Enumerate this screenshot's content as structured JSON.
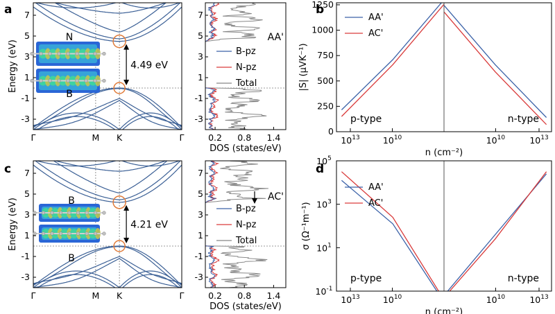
{
  "panel_labels": [
    "a",
    "b",
    "c",
    "d"
  ],
  "colors": {
    "band": "#3a5f95",
    "bpz": "#3b62a8",
    "npz": "#d93a3a",
    "total": "#888888",
    "aa": "#3b62a8",
    "ac": "#d93a3a",
    "marker": "#e07b39",
    "grid": "#777777"
  },
  "chart_data": [
    {
      "id": "a",
      "type": "line",
      "title": "",
      "xlabel": "",
      "ylabel": "Energy (eV)",
      "kpoint_labels": [
        "Γ",
        "M",
        "K",
        "Γ"
      ],
      "ylim": [
        -4,
        8.2
      ],
      "yticks": [
        -3,
        -1,
        1,
        3,
        5,
        7
      ],
      "fermi_level": 0,
      "gap": {
        "value": 4.49,
        "label": "4.49 eV",
        "vbm": 0,
        "cbm": 4.49,
        "k_point": "K"
      },
      "atom_labels": {
        "top": "N",
        "bottom": "B"
      },
      "bands_sampled": {
        "x": [
          0,
          0.55,
          0.73,
          1
        ],
        "conduction": [
          [
            7.6,
            5.6,
            4.49,
            7.6
          ],
          [
            8.2,
            6.6,
            5.4,
            8.1
          ]
        ],
        "valence": [
          [
            -3.9,
            -1.2,
            0,
            -3.9
          ],
          [
            -4.0,
            -2.6,
            -1.3,
            -4.0
          ]
        ]
      }
    },
    {
      "id": "a-dos",
      "type": "line",
      "xlabel": "DOS (states/eV)",
      "ylabel": "",
      "xlim": [
        0,
        1.65
      ],
      "ylim": [
        -4,
        8.2
      ],
      "xtick_labels": [
        "0.2",
        "0.8",
        "1.4"
      ],
      "yticks": [
        -3,
        -1,
        1,
        3,
        5,
        7
      ],
      "stacking_label": "AA'",
      "series": [
        {
          "name": "B-pz"
        },
        {
          "name": "N-pz"
        },
        {
          "name": "Total"
        }
      ]
    },
    {
      "id": "b",
      "type": "line",
      "title": "",
      "xlabel": "n (cm⁻²)",
      "ylabel": "|S| (μVK⁻¹)",
      "ylim": [
        0,
        1270
      ],
      "yticks": [
        0,
        250,
        500,
        750,
        1000,
        1250
      ],
      "xtick_labels": [
        "10",
        "10",
        "10",
        "10"
      ],
      "xtick_exponents": [
        "13",
        "10",
        "10",
        "13"
      ],
      "region_labels": [
        "p-type",
        "n-type"
      ],
      "x": [
        -13,
        -10,
        -7,
        -7,
        -10,
        -13
      ],
      "series": [
        {
          "name": "AA'",
          "values": [
            215,
            710,
            1300,
            1245,
            660,
            140
          ]
        },
        {
          "name": "AC'",
          "values": [
            150,
            660,
            1255,
            1180,
            590,
            70
          ]
        }
      ]
    },
    {
      "id": "c",
      "type": "line",
      "title": "",
      "xlabel": "",
      "ylabel": "Energy (eV)",
      "kpoint_labels": [
        "Γ",
        "M",
        "K",
        "Γ"
      ],
      "ylim": [
        -4,
        8.2
      ],
      "yticks": [
        -3,
        -1,
        1,
        3,
        5,
        7
      ],
      "fermi_level": 0,
      "gap": {
        "value": 4.21,
        "label": "4.21 eV",
        "vbm": 0,
        "cbm": 4.21,
        "k_point": "K"
      },
      "atom_labels": {
        "top": "B",
        "bottom": "B"
      },
      "bands_sampled": {
        "x": [
          0,
          0.55,
          0.73,
          1
        ],
        "conduction": [
          [
            7.6,
            5.0,
            4.21,
            7.6
          ],
          [
            8.2,
            5.6,
            4.9,
            8.2
          ]
        ],
        "valence": [
          [
            -3.9,
            -1.2,
            0,
            -3.9
          ],
          [
            -4.0,
            -2.6,
            -1.3,
            -4.0
          ]
        ]
      }
    },
    {
      "id": "c-dos",
      "type": "line",
      "xlabel": "DOS (states/eV)",
      "ylabel": "",
      "xlim": [
        0,
        1.65
      ],
      "ylim": [
        -4,
        8.2
      ],
      "xtick_labels": [
        "0.2",
        "0.8",
        "1.4"
      ],
      "yticks": [
        -3,
        -1,
        1,
        3,
        5,
        7
      ],
      "stacking_label": "AC'",
      "series": [
        {
          "name": "B-pz"
        },
        {
          "name": "N-pz"
        },
        {
          "name": "Total"
        }
      ]
    },
    {
      "id": "d",
      "type": "line",
      "title": "",
      "xlabel": "n (cm⁻²)",
      "ylabel": "σ (Ω⁻¹m⁻¹)",
      "yscale": "log",
      "ylim": [
        -1,
        5
      ],
      "ytick_labels": [
        "10",
        "10",
        "10",
        "10"
      ],
      "ytick_exponents": [
        "-1",
        "1",
        "3",
        "5"
      ],
      "xtick_labels": [
        "10",
        "10",
        "10",
        "10"
      ],
      "xtick_exponents": [
        "13",
        "10",
        "10",
        "13"
      ],
      "region_labels": [
        "p-type",
        "n-type"
      ],
      "x": [
        -13,
        -10,
        -7,
        -7,
        -10,
        -13
      ],
      "series": [
        {
          "name": "AA'",
          "log10_values": [
            4.1,
            2.1,
            -1.5,
            -1.2,
            1.6,
            4.4
          ]
        },
        {
          "name": "AC'",
          "log10_values": [
            4.5,
            2.4,
            -1.4,
            -1.3,
            1.4,
            4.5
          ]
        }
      ]
    }
  ]
}
